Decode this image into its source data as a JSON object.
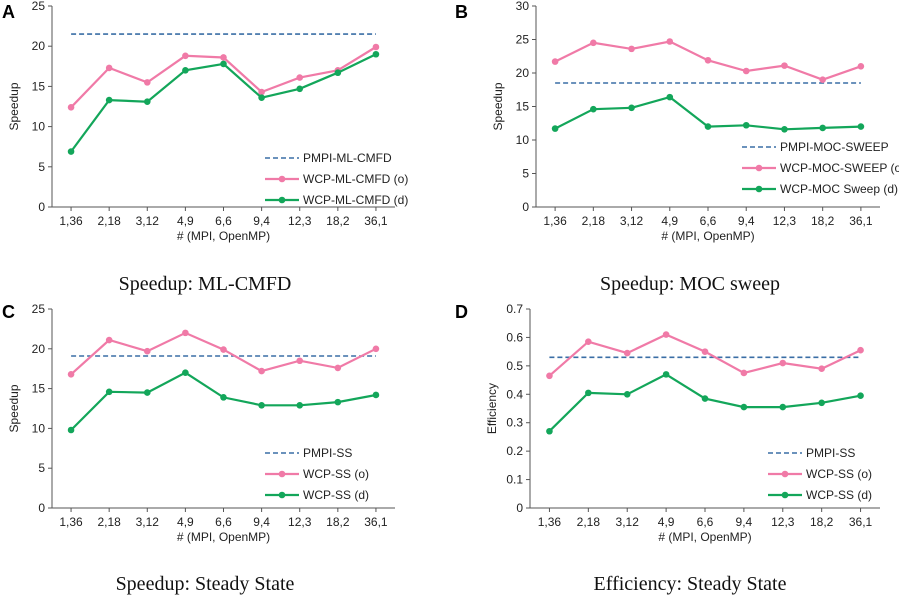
{
  "colors": {
    "pmpi": "#3A6EA5",
    "wcp_o": "#F07AA7",
    "wcp_d": "#13A65A",
    "axis": "#555555"
  },
  "chart_data": [
    {
      "id": "A",
      "type": "line",
      "letter": "A",
      "caption": "Speedup: ML-CMFD",
      "xlabel": "# (MPI, OpenMP)",
      "ylabel": "Speedup",
      "ylim": [
        0,
        25
      ],
      "yticks": [
        0,
        5,
        10,
        15,
        20,
        25
      ],
      "ytick_labels": [
        "0",
        "5",
        "10",
        "15",
        "20",
        "25"
      ],
      "categories": [
        "1,36",
        "2,18",
        "3,12",
        "4,9",
        "6,6",
        "9,4",
        "12,3",
        "18,2",
        "36,1"
      ],
      "legend_position": "bottom-right",
      "series": [
        {
          "name": "PMPI-ML-CMFD",
          "style": "dashed",
          "color_key": "pmpi",
          "values": [
            21.5,
            21.5,
            21.5,
            21.5,
            21.5,
            21.5,
            21.5,
            21.5,
            21.5
          ]
        },
        {
          "name": "WCP-ML-CMFD (o)",
          "style": "marker",
          "color_key": "wcp_o",
          "values": [
            12.4,
            17.3,
            15.5,
            18.8,
            18.6,
            14.3,
            16.1,
            17.0,
            19.9
          ]
        },
        {
          "name": "WCP-ML-CMFD (d)",
          "style": "marker",
          "color_key": "wcp_d",
          "values": [
            6.9,
            13.3,
            13.1,
            17.0,
            17.8,
            13.6,
            14.7,
            16.7,
            19.0
          ]
        }
      ]
    },
    {
      "id": "B",
      "type": "line",
      "letter": "B",
      "caption": "Speedup: MOC sweep",
      "xlabel": "# (MPI, OpenMP)",
      "ylabel": "Speedup",
      "ylim": [
        0,
        30
      ],
      "yticks": [
        0,
        5,
        10,
        15,
        20,
        25,
        30
      ],
      "ytick_labels": [
        "0",
        "5",
        "10",
        "15",
        "20",
        "25",
        "30"
      ],
      "categories": [
        "1,36",
        "2,18",
        "3,12",
        "4,9",
        "6,6",
        "9,4",
        "12,3",
        "18,2",
        "36,1"
      ],
      "legend_position": "bottom-right",
      "series": [
        {
          "name": "PMPI-MOC-SWEEP",
          "style": "dashed",
          "color_key": "pmpi",
          "values": [
            18.5,
            18.5,
            18.5,
            18.5,
            18.5,
            18.5,
            18.5,
            18.5,
            18.5
          ]
        },
        {
          "name": "WCP-MOC-SWEEP (o)",
          "style": "marker",
          "color_key": "wcp_o",
          "values": [
            21.7,
            24.5,
            23.6,
            24.7,
            21.9,
            20.3,
            21.1,
            19.0,
            21.0
          ]
        },
        {
          "name": "WCP-MOC Sweep (d)",
          "style": "marker",
          "color_key": "wcp_d",
          "values": [
            11.7,
            14.6,
            14.8,
            16.4,
            12.0,
            12.2,
            11.6,
            11.8,
            12.0
          ]
        }
      ]
    },
    {
      "id": "C",
      "type": "line",
      "letter": "C",
      "caption": "Speedup: Steady State",
      "xlabel": "# (MPI, OpenMP)",
      "ylabel": "Speedup",
      "ylim": [
        0,
        25
      ],
      "yticks": [
        0,
        5,
        10,
        15,
        20,
        25
      ],
      "ytick_labels": [
        "0",
        "5",
        "10",
        "15",
        "20",
        "25"
      ],
      "categories": [
        "1,36",
        "2,18",
        "3,12",
        "4,9",
        "6,6",
        "9,4",
        "12,3",
        "18,2",
        "36,1"
      ],
      "legend_position": "bottom-right",
      "series": [
        {
          "name": "PMPI-SS",
          "style": "dashed",
          "color_key": "pmpi",
          "values": [
            19.1,
            19.1,
            19.1,
            19.1,
            19.1,
            19.1,
            19.1,
            19.1,
            19.1
          ]
        },
        {
          "name": "WCP-SS (o)",
          "style": "marker",
          "color_key": "wcp_o",
          "values": [
            16.8,
            21.1,
            19.7,
            22.0,
            19.9,
            17.2,
            18.5,
            17.6,
            20.0
          ]
        },
        {
          "name": "WCP-SS (d)",
          "style": "marker",
          "color_key": "wcp_d",
          "values": [
            9.8,
            14.6,
            14.5,
            17.0,
            13.9,
            12.9,
            12.9,
            13.3,
            14.2
          ]
        }
      ]
    },
    {
      "id": "D",
      "type": "line",
      "letter": "D",
      "caption": "Efficiency: Steady State",
      "xlabel": "# (MPI, OpenMP)",
      "ylabel": "Efficiency",
      "ylim": [
        0,
        0.7
      ],
      "yticks": [
        0,
        0.1,
        0.2,
        0.3,
        0.4,
        0.5,
        0.6,
        0.7
      ],
      "ytick_labels": [
        "0",
        "0.1",
        "0.2",
        "0.3",
        "0.4",
        "0.5",
        "0.6",
        "0.7"
      ],
      "categories": [
        "1,36",
        "2,18",
        "3,12",
        "4,9",
        "6,6",
        "9,4",
        "12,3",
        "18,2",
        "36,1"
      ],
      "legend_position": "bottom-right",
      "series": [
        {
          "name": "PMPI-SS",
          "style": "dashed",
          "color_key": "pmpi",
          "values": [
            0.53,
            0.53,
            0.53,
            0.53,
            0.53,
            0.53,
            0.53,
            0.53,
            0.53
          ]
        },
        {
          "name": "WCP-SS (o)",
          "style": "marker",
          "color_key": "wcp_o",
          "values": [
            0.465,
            0.585,
            0.545,
            0.61,
            0.55,
            0.475,
            0.51,
            0.49,
            0.555
          ]
        },
        {
          "name": "WCP-SS (d)",
          "style": "marker",
          "color_key": "wcp_d",
          "values": [
            0.27,
            0.405,
            0.4,
            0.47,
            0.385,
            0.355,
            0.355,
            0.37,
            0.395
          ]
        }
      ]
    }
  ]
}
